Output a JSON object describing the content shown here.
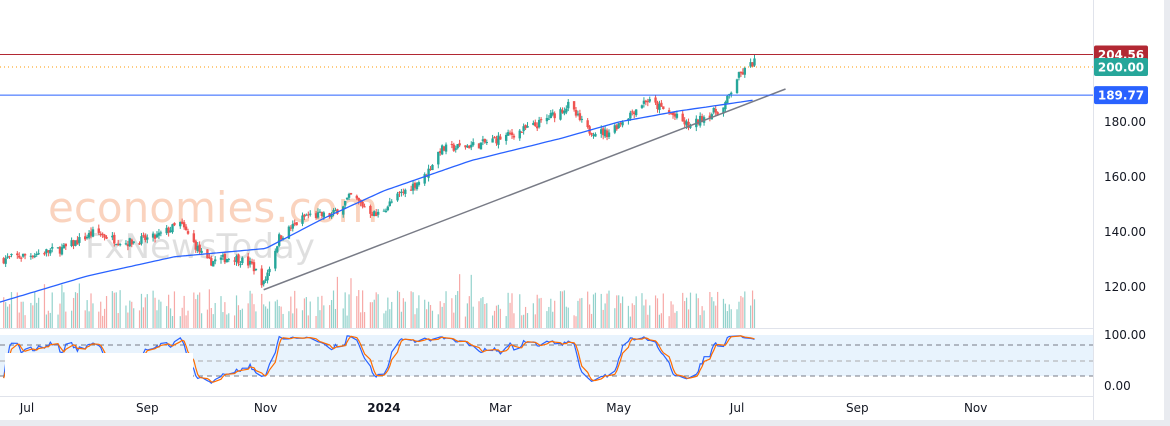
{
  "watermark": {
    "line1": "economies.com",
    "line2": "FxNewsToday"
  },
  "chart_data": {
    "type": "candlestick",
    "colors": {
      "up": "#26a69a",
      "down": "#ef5350",
      "ma": "#2962ff",
      "trend": "#787b86",
      "resistance": "#b22833",
      "target": "#ff9800",
      "support": "#2962ff",
      "stoch_k": "#2962ff",
      "stoch_d": "#ff6d00"
    },
    "price_axis": {
      "ticks": [
        "180.00",
        "160.00",
        "140.00",
        "120.00"
      ],
      "tick_values": [
        180,
        160,
        140,
        120
      ],
      "ylim": [
        108,
        210
      ]
    },
    "stoch_axis": {
      "ticks": [
        "100.00",
        "0.00"
      ],
      "tick_values": [
        100,
        0
      ],
      "levels": [
        80,
        50,
        20
      ]
    },
    "time_axis": [
      {
        "label": "Jul",
        "date": "2023-07-01"
      },
      {
        "label": "Sep",
        "date": "2023-09-01"
      },
      {
        "label": "Nov",
        "date": "2023-11-01"
      },
      {
        "label": "2024",
        "date": "2024-01-01",
        "bold": true
      },
      {
        "label": "Mar",
        "date": "2024-03-01"
      },
      {
        "label": "May",
        "date": "2024-05-01"
      },
      {
        "label": "Jul",
        "date": "2024-07-01"
      },
      {
        "label": "Sep",
        "date": "2024-09-01"
      },
      {
        "label": "Nov",
        "date": "2024-11-01"
      }
    ],
    "date_range": [
      "2023-06-17",
      "2024-12-15"
    ],
    "price_path": [
      [
        "2023-06-17",
        130
      ],
      [
        "2023-07-05",
        132
      ],
      [
        "2023-07-20",
        134
      ],
      [
        "2023-08-05",
        140
      ],
      [
        "2023-08-20",
        136
      ],
      [
        "2023-09-05",
        138
      ],
      [
        "2023-09-18",
        143
      ],
      [
        "2023-10-02",
        129
      ],
      [
        "2023-10-15",
        131
      ],
      [
        "2023-10-25",
        128
      ],
      [
        "2023-10-31",
        121
      ],
      [
        "2023-11-08",
        138
      ],
      [
        "2023-11-22",
        146
      ],
      [
        "2023-12-05",
        146
      ],
      [
        "2023-12-15",
        153
      ],
      [
        "2023-12-28",
        146
      ],
      [
        "2024-01-10",
        154
      ],
      [
        "2024-01-22",
        160
      ],
      [
        "2024-01-30",
        170
      ],
      [
        "2024-02-20",
        172
      ],
      [
        "2024-03-05",
        175
      ],
      [
        "2024-03-20",
        179
      ],
      [
        "2024-04-05",
        186
      ],
      [
        "2024-04-15",
        177
      ],
      [
        "2024-04-25",
        176
      ],
      [
        "2024-05-02",
        180
      ],
      [
        "2024-05-15",
        188
      ],
      [
        "2024-05-28",
        183
      ],
      [
        "2024-06-07",
        178
      ],
      [
        "2024-06-14",
        182
      ],
      [
        "2024-06-24",
        185
      ],
      [
        "2024-07-01",
        196
      ],
      [
        "2024-07-10",
        202
      ]
    ],
    "moving_average": [
      [
        "2023-06-17",
        114.5
      ],
      [
        "2023-08-01",
        124
      ],
      [
        "2023-09-15",
        131
      ],
      [
        "2023-11-01",
        134
      ],
      [
        "2023-12-01",
        145
      ],
      [
        "2024-01-01",
        155
      ],
      [
        "2024-02-15",
        166
      ],
      [
        "2024-04-01",
        174
      ],
      [
        "2024-05-01",
        180
      ],
      [
        "2024-06-01",
        184
      ],
      [
        "2024-07-10",
        188
      ]
    ],
    "trendline": {
      "from": [
        "2023-10-31",
        119
      ],
      "to": [
        "2024-07-26",
        192
      ]
    },
    "horizontal_levels": [
      {
        "value": 204.56,
        "label": "204.56",
        "color_key": "resistance",
        "style": "solid"
      },
      {
        "value": 200.0,
        "label": "200.00",
        "color_key": "target",
        "style": "dotted",
        "tag_color": "#26a69a"
      },
      {
        "value": 189.77,
        "label": "189.77",
        "color_key": "support",
        "style": "solid"
      }
    ]
  }
}
